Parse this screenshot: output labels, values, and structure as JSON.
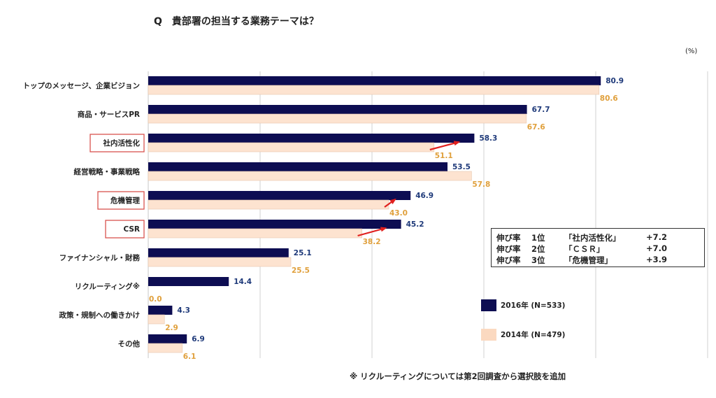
{
  "question": "Q　貴部署の担当する業務テーマは？",
  "unit": "(%)",
  "footnote": "※ リクルーティングについては第2回調査から選択肢を追加",
  "growth_box": {
    "rows": [
      {
        "label": "伸び率",
        "rank": "1位",
        "item": "「社内活性化」",
        "delta": "+7.2"
      },
      {
        "label": "伸び率",
        "rank": "2位",
        "item": "「ＣＳＲ」",
        "delta": "+7.0"
      },
      {
        "label": "伸び率",
        "rank": "3位",
        "item": "「危機管理」",
        "delta": "+3.9"
      }
    ]
  },
  "legend": [
    {
      "label": "2016年 (N=533)",
      "color": "#0d0d52"
    },
    {
      "label": "2014年 (N=479)",
      "color": "#fbd9c0"
    }
  ],
  "colors": {
    "bar_2016": "#0d0d52",
    "bar_2014": "#fde3d0",
    "label_2016": "#1f3a7a",
    "label_2014": "#e0a03c",
    "highlight_border": "#d9534f",
    "arrow": "#e0201e",
    "grid": "#d0d0d0"
  },
  "chart_data": {
    "type": "bar",
    "orientation": "horizontal",
    "categories": [
      "トップのメッセージ、企業ビジョン",
      "商品・サービスPR",
      "社内活性化",
      "経営戦略・事業戦略",
      "危機管理",
      "CSR",
      "ファイナンシャル・財務",
      "リクルーティング※",
      "政策・規制への働きかけ",
      "その他"
    ],
    "series": [
      {
        "name": "2016年 (N=533)",
        "values": [
          80.9,
          67.7,
          58.3,
          53.5,
          46.9,
          45.2,
          25.1,
          14.4,
          4.3,
          6.9
        ]
      },
      {
        "name": "2014年 (N=479)",
        "values": [
          80.6,
          67.6,
          51.1,
          57.8,
          43.0,
          38.2,
          25.5,
          0.0,
          2.9,
          6.1
        ]
      }
    ],
    "value_labels_2016": [
      "80.9",
      "67.7",
      "58.3",
      "53.5",
      "46.9",
      "45.2",
      "25.1",
      "14.4",
      "4.3",
      "6.9"
    ],
    "value_labels_2014": [
      "80.6",
      "67.6",
      "51.1",
      "57.8",
      "43.0",
      "38.2",
      "25.5",
      "0.0",
      "2.9",
      "6.1"
    ],
    "highlighted_categories": [
      "社内活性化",
      "危機管理",
      "CSR"
    ],
    "xlim": [
      0,
      100
    ],
    "grid_values": [
      0,
      20,
      40,
      60,
      80,
      100
    ],
    "grid": true,
    "legend_position": "right"
  }
}
